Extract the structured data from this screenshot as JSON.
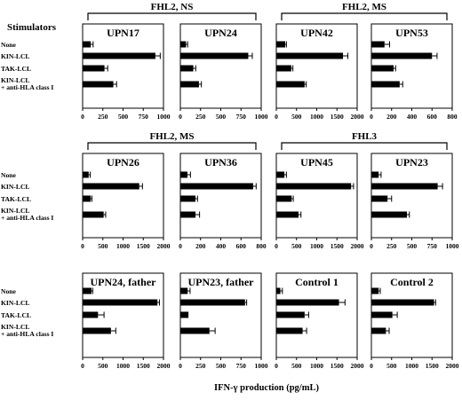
{
  "figure": {
    "stimulators_header": "Stimulators",
    "x_axis_label": "IFN-γ production (pg/mL)",
    "stimulator_labels": [
      "None",
      "KIN-LCL",
      "TAK-LCL",
      "KIN-LCL",
      "+ anti-HLA class I"
    ],
    "groups": [
      {
        "label": "FHL2, NS",
        "row": 0,
        "from": 0,
        "to": 1
      },
      {
        "label": "FHL2, MS",
        "row": 0,
        "from": 2,
        "to": 3
      },
      {
        "label": "FHL2, MS",
        "row": 1,
        "from": 0,
        "to": 1
      },
      {
        "label": "FHL3",
        "row": 1,
        "from": 2,
        "to": 3
      }
    ]
  },
  "chart_data": [
    {
      "type": "bar",
      "orientation": "horizontal",
      "row": 0,
      "col": 0,
      "title": "UPN17",
      "categories": [
        "None",
        "KIN-LCL",
        "TAK-LCL",
        "KIN-LCL + anti-HLA class I"
      ],
      "values": [
        100,
        900,
        270,
        380
      ],
      "errors": [
        30,
        60,
        40,
        40
      ],
      "xlim": [
        0,
        1000
      ],
      "ticks": [
        0,
        250,
        500,
        750,
        1000
      ]
    },
    {
      "type": "bar",
      "orientation": "horizontal",
      "row": 0,
      "col": 1,
      "title": "UPN24",
      "categories": [
        "None",
        "KIN-LCL",
        "TAK-LCL",
        "KIN-LCL + anti-HLA class I"
      ],
      "values": [
        70,
        840,
        160,
        230
      ],
      "errors": [
        20,
        50,
        30,
        30
      ],
      "xlim": [
        0,
        1000
      ],
      "ticks": [
        0,
        250,
        500,
        750,
        1000
      ]
    },
    {
      "type": "bar",
      "orientation": "horizontal",
      "row": 0,
      "col": 2,
      "title": "UPN42",
      "categories": [
        "None",
        "KIN-LCL",
        "TAK-LCL",
        "KIN-LCL + anti-HLA class I"
      ],
      "values": [
        220,
        1650,
        370,
        700
      ],
      "errors": [
        30,
        120,
        40,
        40
      ],
      "xlim": [
        0,
        2000
      ],
      "ticks": [
        0,
        500,
        1000,
        1500,
        2000
      ]
    },
    {
      "type": "bar",
      "orientation": "horizontal",
      "row": 0,
      "col": 3,
      "title": "UPN53",
      "categories": [
        "None",
        "KIN-LCL",
        "TAK-LCL",
        "KIN-LCL + anti-HLA class I"
      ],
      "values": [
        130,
        600,
        220,
        280
      ],
      "errors": [
        50,
        50,
        20,
        30
      ],
      "xlim": [
        0,
        800
      ],
      "ticks": [
        0,
        200,
        400,
        600,
        800
      ]
    },
    {
      "type": "bar",
      "orientation": "horizontal",
      "row": 1,
      "col": 0,
      "title": "UPN26",
      "categories": [
        "None",
        "KIN-LCL",
        "TAK-LCL",
        "KIN-LCL + anti-HLA class I"
      ],
      "values": [
        150,
        1400,
        200,
        520
      ],
      "errors": [
        40,
        80,
        30,
        50
      ],
      "xlim": [
        0,
        2000
      ],
      "ticks": [
        0,
        500,
        1000,
        1500,
        2000
      ]
    },
    {
      "type": "bar",
      "orientation": "horizontal",
      "row": 1,
      "col": 1,
      "title": "UPN36",
      "categories": [
        "None",
        "KIN-LCL",
        "TAK-LCL",
        "KIN-LCL + anti-HLA class I"
      ],
      "values": [
        70,
        720,
        150,
        150
      ],
      "errors": [
        30,
        30,
        20,
        40
      ],
      "xlim": [
        0,
        800
      ],
      "ticks": [
        0,
        200,
        400,
        600,
        800
      ]
    },
    {
      "type": "bar",
      "orientation": "horizontal",
      "row": 1,
      "col": 2,
      "title": "UPN45",
      "categories": [
        "None",
        "KIN-LCL",
        "TAK-LCL",
        "KIN-LCL + anti-HLA class I"
      ],
      "values": [
        200,
        1850,
        380,
        550
      ],
      "errors": [
        50,
        60,
        40,
        60
      ],
      "xlim": [
        0,
        2000
      ],
      "ticks": [
        0,
        500,
        1000,
        1500,
        2000
      ]
    },
    {
      "type": "bar",
      "orientation": "horizontal",
      "row": 1,
      "col": 3,
      "title": "UPN23",
      "categories": [
        "None",
        "KIN-LCL",
        "TAK-LCL",
        "KIN-LCL + anti-HLA class I"
      ],
      "values": [
        90,
        820,
        200,
        440
      ],
      "errors": [
        30,
        60,
        50,
        30
      ],
      "xlim": [
        0,
        1000
      ],
      "ticks": [
        0,
        250,
        500,
        750,
        1000
      ]
    },
    {
      "type": "bar",
      "orientation": "horizontal",
      "row": 2,
      "col": 0,
      "title": "UPN24, father",
      "categories": [
        "None",
        "KIN-LCL",
        "TAK-LCL",
        "KIN-LCL + anti-HLA class I"
      ],
      "values": [
        220,
        1850,
        380,
        700
      ],
      "errors": [
        30,
        50,
        150,
        120
      ],
      "xlim": [
        0,
        2000
      ],
      "ticks": [
        0,
        500,
        1000,
        1500,
        2000
      ]
    },
    {
      "type": "bar",
      "orientation": "horizontal",
      "row": 2,
      "col": 1,
      "title": "UPN23, father",
      "categories": [
        "None",
        "KIN-LCL",
        "TAK-LCL",
        "KIN-LCL + anti-HLA class I"
      ],
      "values": [
        90,
        800,
        100,
        360
      ],
      "errors": [
        30,
        20,
        0,
        70
      ],
      "xlim": [
        0,
        1000
      ],
      "ticks": [
        0,
        250,
        500,
        750,
        1000
      ]
    },
    {
      "type": "bar",
      "orientation": "horizontal",
      "row": 2,
      "col": 2,
      "title": "Control 1",
      "categories": [
        "None",
        "KIN-LCL",
        "TAK-LCL",
        "KIN-LCL + anti-HLA class I"
      ],
      "values": [
        100,
        1550,
        700,
        650
      ],
      "errors": [
        50,
        150,
        100,
        100
      ],
      "xlim": [
        0,
        2000
      ],
      "ticks": [
        0,
        500,
        1000,
        1500,
        2000
      ]
    },
    {
      "type": "bar",
      "orientation": "horizontal",
      "row": 2,
      "col": 3,
      "title": "Control 2",
      "categories": [
        "None",
        "KIN-LCL",
        "TAK-LCL",
        "KIN-LCL + anti-HLA class I"
      ],
      "values": [
        180,
        1550,
        520,
        360
      ],
      "errors": [
        40,
        40,
        120,
        80
      ],
      "xlim": [
        0,
        2000
      ],
      "ticks": [
        0,
        500,
        1000,
        1500,
        2000
      ]
    }
  ]
}
